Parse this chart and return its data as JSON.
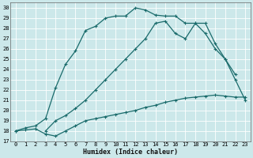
{
  "xlabel": "Humidex (Indice chaleur)",
  "bg_color": "#cce8ea",
  "grid_color": "#ffffff",
  "line_color": "#1a6b6b",
  "xlim": [
    -0.5,
    23.5
  ],
  "ylim": [
    17,
    30.5
  ],
  "yticks": [
    17,
    18,
    19,
    20,
    21,
    22,
    23,
    24,
    25,
    26,
    27,
    28,
    29,
    30
  ],
  "xticks": [
    0,
    1,
    2,
    3,
    4,
    5,
    6,
    7,
    8,
    9,
    10,
    11,
    12,
    13,
    14,
    15,
    16,
    17,
    18,
    19,
    20,
    21,
    22,
    23
  ],
  "curve1_x": [
    0,
    1,
    2,
    3,
    4,
    5,
    6,
    7,
    8,
    9,
    10,
    11,
    12,
    13,
    14,
    15,
    16,
    17,
    18,
    19,
    20,
    21,
    22,
    23
  ],
  "curve1_y": [
    18,
    18.3,
    18.5,
    19.2,
    22.2,
    24.5,
    25.8,
    27.8,
    28.2,
    29.0,
    29.2,
    29.2,
    30.0,
    29.8,
    29.3,
    29.2,
    29.2,
    28.5,
    28.5,
    27.5,
    26.0,
    25.0,
    23.0,
    21.0
  ],
  "curve2_x": [
    3,
    4,
    5,
    6,
    7,
    8,
    9,
    10,
    11,
    12,
    13,
    14,
    15,
    16,
    17,
    18,
    19,
    20,
    21,
    22
  ],
  "curve2_y": [
    18,
    19.0,
    19.5,
    20.2,
    21.0,
    22.0,
    23.0,
    24.0,
    25.0,
    26.0,
    27.0,
    28.5,
    28.7,
    27.5,
    27.0,
    28.5,
    28.5,
    26.5,
    25.0,
    23.5
  ],
  "curve3_x": [
    0,
    1,
    2,
    3,
    4,
    5,
    6,
    7,
    8,
    9,
    10,
    11,
    12,
    13,
    14,
    15,
    16,
    17,
    18,
    19,
    20,
    21,
    22,
    23
  ],
  "curve3_y": [
    18,
    18.1,
    18.2,
    17.7,
    17.5,
    18.0,
    18.5,
    19.0,
    19.2,
    19.4,
    19.6,
    19.8,
    20.0,
    20.3,
    20.5,
    20.8,
    21.0,
    21.2,
    21.3,
    21.4,
    21.5,
    21.4,
    21.3,
    21.3
  ],
  "markersize": 2.0,
  "linewidth": 0.9,
  "tick_fontsize": 5.0,
  "xlabel_fontsize": 6.0
}
